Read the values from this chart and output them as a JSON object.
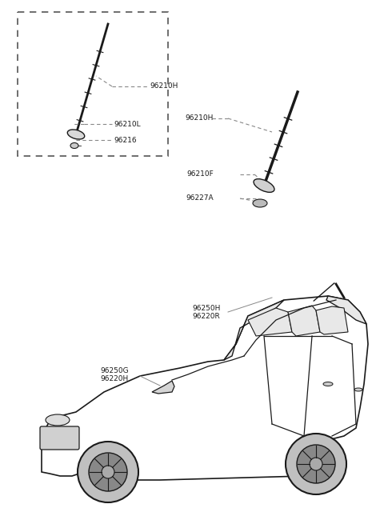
{
  "bg_color": "#ffffff",
  "line_color": "#1a1a1a",
  "text_color": "#1a1a1a",
  "fig_width": 4.8,
  "fig_height": 6.55,
  "dpi": 100,
  "labels": {
    "box_96210H": "96210H",
    "box_96210L": "96210L",
    "box_96216": "96216",
    "right_96210H": "96210H",
    "right_96210F": "96210F",
    "right_96227A": "96227A",
    "car_96250H": "96250H",
    "car_96220R": "96220R",
    "car_96250G": "96250G",
    "car_96220H": "96220H"
  }
}
